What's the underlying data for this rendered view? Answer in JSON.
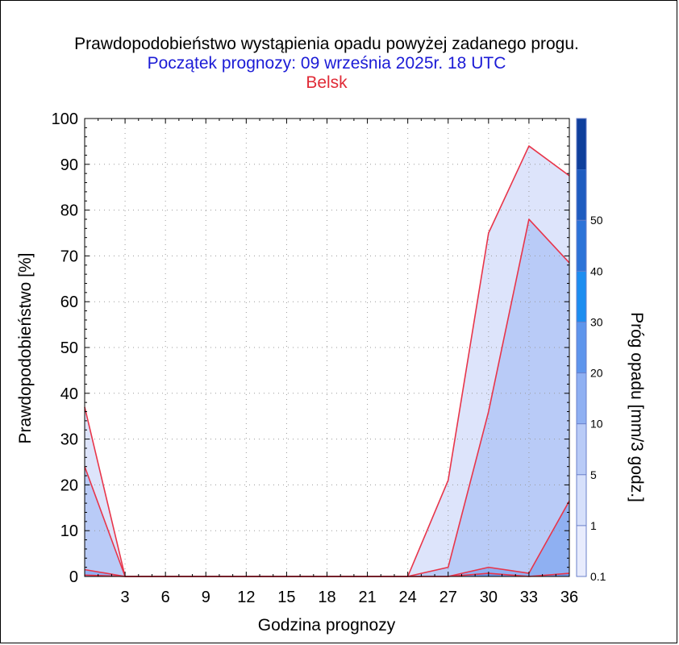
{
  "chart_data": {
    "type": "area",
    "title": "Prawdopodobieństwo wystąpienia opadu powyżej zadanego progu.",
    "subtitle": "Początek prognozy: 09 września 2025r. 18 UTC",
    "location": "Belsk",
    "xlabel": "Godzina prognozy",
    "ylabel": "Prawdopodobieństwo [%]",
    "xlim": [
      0,
      36
    ],
    "ylim": [
      0,
      100
    ],
    "x_ticks": [
      3,
      6,
      9,
      12,
      15,
      18,
      21,
      24,
      27,
      30,
      33,
      36
    ],
    "y_ticks": [
      0,
      10,
      20,
      30,
      40,
      50,
      60,
      70,
      80,
      90,
      100
    ],
    "grid": "dotted",
    "x": [
      0,
      3,
      6,
      9,
      12,
      15,
      18,
      21,
      24,
      27,
      30,
      33,
      36
    ],
    "series": [
      {
        "threshold": "0.1",
        "color": "#dde4fb",
        "values": [
          37,
          0,
          0,
          0,
          0,
          0,
          0,
          0,
          0,
          21,
          75,
          94,
          87.5
        ]
      },
      {
        "threshold": "1",
        "color": "#b9cbf7",
        "values": [
          24,
          0,
          0,
          0,
          0,
          0,
          0,
          0,
          0,
          2,
          36,
          78,
          68.5
        ]
      },
      {
        "threshold": "5",
        "color": "#8fb0f2",
        "values": [
          1.5,
          0,
          0,
          0,
          0,
          0,
          0,
          0,
          0,
          0,
          2,
          0.7,
          16.5
        ]
      },
      {
        "threshold": "10",
        "color": "#6f95e6",
        "values": [
          0.3,
          0,
          0,
          0,
          0,
          0,
          0,
          0,
          0,
          0,
          0.7,
          0,
          0.7
        ]
      }
    ],
    "colorbar": {
      "label": "Próg opadu [mm/3 godz.]",
      "tick_labels": [
        "0.1",
        "1",
        "5",
        "10",
        "20",
        "30",
        "40",
        "50"
      ],
      "colors": [
        "#e8ecfd",
        "#d6e0fb",
        "#b9cbf7",
        "#8fb0f2",
        "#5e95ec",
        "#1d8ef0",
        "#2c73d8",
        "#1e5cc0",
        "#0e3f9c"
      ]
    },
    "line_color": "#e8354a"
  }
}
